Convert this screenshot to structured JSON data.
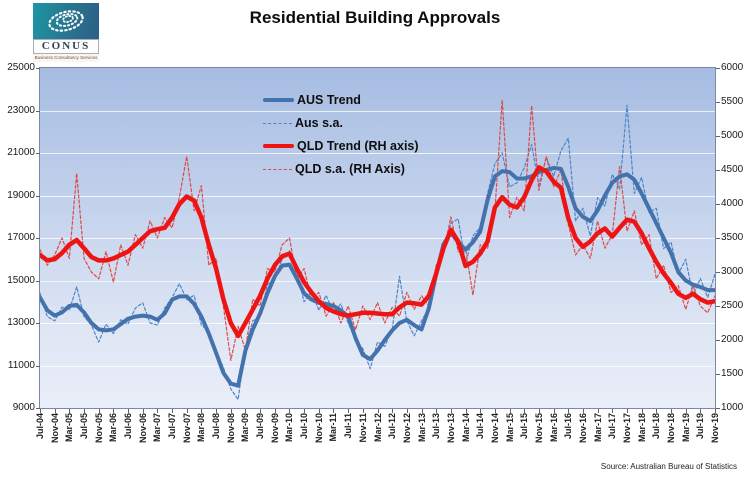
{
  "logo": {
    "name": "CONUS",
    "tagline": "Business Consultancy Services"
  },
  "source": "Source: Australian Bureau of Statistics",
  "legend": [
    {
      "label": "AUS Trend",
      "color": "#4472ac",
      "style": "solid"
    },
    {
      "label": "Aus s.a.",
      "color": "#4e86c6",
      "style": "dashed"
    },
    {
      "label": "QLD Trend (RH axis)",
      "color": "#ee1414",
      "style": "solid"
    },
    {
      "label": "QLD s.a. (RH Axis)",
      "color": "#dd4a4a",
      "style": "dashed"
    }
  ],
  "chart_data": {
    "type": "line",
    "title": "Residential Building Approvals",
    "x_range": "monthly from Jul-04 to Nov-19, values sampled every 2 months",
    "x_tick_labels": [
      "Jul-04",
      "Nov-04",
      "Mar-05",
      "Jul-05",
      "Nov-05",
      "Mar-06",
      "Jul-06",
      "Nov-06",
      "Mar-07",
      "Jul-07",
      "Nov-07",
      "Mar-08",
      "Jul-08",
      "Nov-08",
      "Mar-09",
      "Jul-09",
      "Nov-09",
      "Mar-10",
      "Jul-10",
      "Nov-10",
      "Mar-11",
      "Jul-11",
      "Nov-11",
      "Mar-12",
      "Jul-12",
      "Nov-12",
      "Mar-13",
      "Jul-13",
      "Nov-13",
      "Mar-14",
      "Jul-14",
      "Nov-14",
      "Mar-15",
      "Jul-15",
      "Nov-15",
      "Mar-16",
      "Jul-16",
      "Nov-16",
      "Mar-17",
      "Jul-17",
      "Nov-17",
      "Mar-18",
      "Jul-18",
      "Nov-18",
      "Mar-19",
      "Jul-19",
      "Nov-19"
    ],
    "left_axis": {
      "min": 9000,
      "max": 25000,
      "step": 2000,
      "grid_step": 2000
    },
    "right_axis": {
      "min": 1000,
      "max": 6000,
      "step": 500
    },
    "legend_position": "inside top-center-left, no box",
    "grid": "horizontal only, light lines on blue gradient background",
    "series": [
      {
        "name": "AUS Trend",
        "axis": "left",
        "style": "solid",
        "width": 4,
        "color": "#4472ac",
        "values": [
          14200,
          13600,
          13350,
          13500,
          13800,
          13850,
          13500,
          13000,
          12700,
          12650,
          12700,
          12950,
          13200,
          13300,
          13350,
          13300,
          13150,
          13450,
          14100,
          14250,
          14250,
          13900,
          13300,
          12500,
          11600,
          10650,
          10150,
          10050,
          11700,
          12700,
          13450,
          14400,
          15200,
          15700,
          15750,
          15100,
          14400,
          14100,
          13950,
          13900,
          13800,
          13600,
          13300,
          12300,
          11500,
          11300,
          11700,
          12200,
          12650,
          13000,
          13150,
          12900,
          12700,
          13700,
          15300,
          16700,
          17250,
          16800,
          16450,
          16800,
          17300,
          18800,
          19900,
          20150,
          20100,
          19800,
          19800,
          19900,
          20100,
          20200,
          20300,
          20250,
          19400,
          18400,
          18000,
          17800,
          18300,
          19000,
          19600,
          19900,
          20000,
          19750,
          19100,
          18400,
          17700,
          17000,
          16300,
          15400,
          15000,
          14800,
          14700,
          14550,
          14550
        ]
      },
      {
        "name": "Aus s.a.",
        "axis": "left",
        "style": "dashed",
        "width": 1.2,
        "color": "#4e86c6",
        "values": [
          14400,
          13300,
          13100,
          13750,
          13600,
          14700,
          13300,
          12900,
          12100,
          12950,
          12500,
          13150,
          12950,
          13700,
          13950,
          13000,
          12900,
          13700,
          14200,
          14850,
          14100,
          14300,
          12900,
          12600,
          11700,
          10900,
          9900,
          9400,
          11900,
          13100,
          13300,
          14800,
          15100,
          16000,
          16400,
          15400,
          14000,
          14500,
          13600,
          14300,
          13500,
          13900,
          13000,
          12200,
          11800,
          10850,
          12100,
          11900,
          12700,
          15200,
          13100,
          12400,
          13100,
          13700,
          15600,
          16300,
          17700,
          17900,
          15800,
          17100,
          17500,
          19100,
          20500,
          21000,
          19400,
          19600,
          20300,
          21400,
          19500,
          20800,
          19900,
          21100,
          21700,
          17800,
          18400,
          17100,
          18900,
          18500,
          20000,
          19300,
          23250,
          19100,
          19850,
          18200,
          18400,
          16500,
          16800,
          15300,
          16000,
          14300,
          15100,
          14200,
          15300
        ]
      },
      {
        "name": "QLD Trend (RH axis)",
        "axis": "right",
        "style": "solid",
        "width": 4.5,
        "color": "#ee1414",
        "values": [
          3250,
          3170,
          3190,
          3280,
          3400,
          3470,
          3350,
          3220,
          3170,
          3170,
          3200,
          3250,
          3300,
          3400,
          3500,
          3600,
          3630,
          3650,
          3800,
          4000,
          4110,
          4050,
          3800,
          3400,
          3050,
          2600,
          2250,
          2060,
          2250,
          2450,
          2650,
          2900,
          3100,
          3230,
          3270,
          3050,
          2850,
          2700,
          2570,
          2470,
          2420,
          2380,
          2360,
          2380,
          2400,
          2400,
          2390,
          2380,
          2380,
          2480,
          2550,
          2540,
          2520,
          2650,
          2980,
          3350,
          3620,
          3450,
          3090,
          3150,
          3270,
          3450,
          3950,
          4100,
          3990,
          3950,
          4100,
          4350,
          4540,
          4480,
          4330,
          4240,
          3790,
          3500,
          3370,
          3450,
          3570,
          3640,
          3520,
          3650,
          3770,
          3740,
          3570,
          3350,
          3150,
          2980,
          2840,
          2680,
          2620,
          2680,
          2600,
          2550,
          2570
        ]
      },
      {
        "name": "QLD s.a. (RH Axis)",
        "axis": "right",
        "style": "dashed",
        "width": 1.2,
        "color": "#dd4a4a",
        "values": [
          3330,
          3100,
          3250,
          3500,
          3200,
          4450,
          3200,
          3000,
          2900,
          3300,
          2850,
          3400,
          3100,
          3550,
          3350,
          3750,
          3500,
          3800,
          3650,
          4100,
          4700,
          3900,
          4270,
          3100,
          3200,
          2500,
          1700,
          2200,
          1850,
          2600,
          2500,
          3050,
          3000,
          3400,
          3500,
          2900,
          3050,
          2600,
          2700,
          2350,
          2550,
          2250,
          2500,
          2150,
          2500,
          2300,
          2550,
          2250,
          2480,
          2350,
          2700,
          2450,
          2650,
          2500,
          3100,
          3300,
          3810,
          3300,
          3350,
          2660,
          3400,
          3350,
          3900,
          5530,
          3800,
          4100,
          3900,
          5450,
          4200,
          4700,
          4250,
          4500,
          3700,
          3250,
          3400,
          3200,
          3750,
          3350,
          3550,
          4550,
          3600,
          3900,
          3400,
          3550,
          2900,
          3100,
          2700,
          2800,
          2450,
          2800,
          2500,
          2400,
          2650
        ]
      }
    ]
  }
}
